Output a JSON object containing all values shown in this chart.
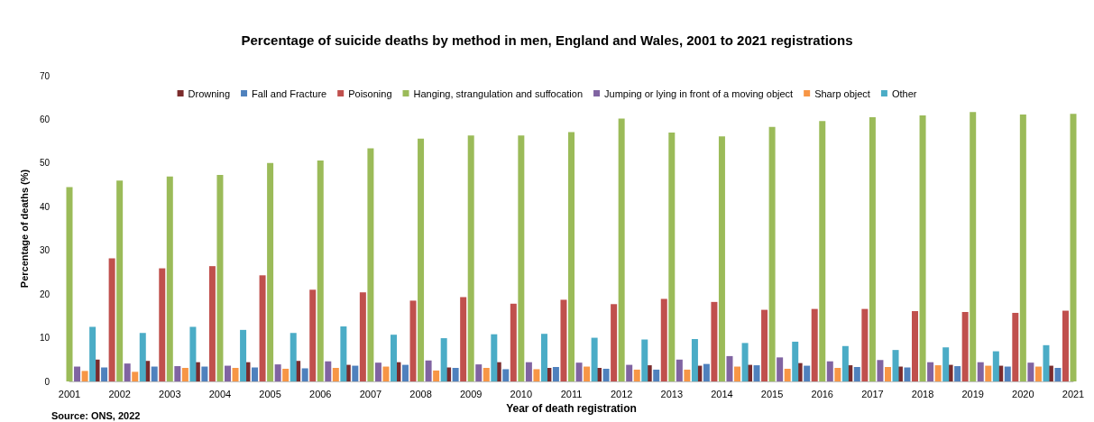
{
  "chart_data": {
    "type": "bar",
    "title": "Percentage of suicide deaths by method in men, England and Wales, 2001 to 2021 registrations",
    "xlabel": "Year of death registration",
    "ylabel": "Percentage of deaths (%)",
    "annotations": [
      "Source: ONS, 2022"
    ],
    "categories": [
      "2001",
      "2002",
      "2003",
      "2004",
      "2005",
      "2006",
      "2007",
      "2008",
      "2009",
      "2010",
      "2011",
      "2012",
      "2013",
      "2014",
      "2015",
      "2016",
      "2017",
      "2018",
      "2019",
      "2020",
      "2021"
    ],
    "series": [
      {
        "name": "Drowning",
        "color": "#7b2c2c",
        "values": [
          null,
          5.0,
          4.7,
          4.4,
          4.4,
          4.7,
          3.8,
          4.4,
          3.2,
          4.4,
          3.1,
          3.1,
          3.7,
          3.6,
          3.8,
          4.2,
          3.7,
          3.4,
          3.8,
          3.6,
          3.6
        ]
      },
      {
        "name": "Fall and Fracture",
        "color": "#4f81bd",
        "values": [
          null,
          3.2,
          3.4,
          3.4,
          3.2,
          3.0,
          3.6,
          3.8,
          3.1,
          2.8,
          3.3,
          2.9,
          2.7,
          4.0,
          3.7,
          3.6,
          3.3,
          3.2,
          3.5,
          3.4,
          3.1
        ]
      },
      {
        "name": "Poisoning",
        "color": "#c0504d",
        "values": [
          null,
          28.2,
          25.9,
          26.4,
          24.3,
          21.0,
          20.4,
          18.5,
          19.3,
          17.8,
          18.7,
          17.7,
          18.9,
          18.2,
          16.4,
          16.6,
          16.6,
          16.1,
          15.9,
          15.7,
          16.2
        ]
      },
      {
        "name": "Hanging, strangulation and suffocation",
        "color": "#9bbb59",
        "values": [
          44.5,
          46.0,
          46.9,
          47.3,
          50.0,
          50.6,
          53.4,
          55.6,
          56.3,
          56.3,
          57.1,
          60.2,
          57.0,
          56.1,
          58.3,
          59.6,
          60.5,
          60.9,
          61.7,
          61.1,
          61.3
        ]
      },
      {
        "name": "Jumping or lying in front of a moving object",
        "color": "#8064a2",
        "values": [
          3.4,
          4.1,
          3.5,
          3.6,
          3.9,
          4.6,
          4.3,
          4.8,
          3.9,
          4.4,
          4.3,
          3.8,
          5.0,
          5.8,
          5.5,
          4.6,
          4.9,
          4.4,
          4.4,
          4.3,
          null
        ]
      },
      {
        "name": "Sharp object",
        "color": "#f79646",
        "values": [
          2.4,
          2.2,
          3.1,
          3.1,
          2.9,
          3.1,
          3.4,
          2.5,
          3.1,
          2.8,
          3.4,
          2.7,
          2.7,
          3.4,
          2.9,
          3.1,
          3.3,
          3.7,
          3.6,
          3.4,
          null
        ]
      },
      {
        "name": "Other",
        "color": "#4bacc6",
        "values": [
          12.5,
          11.1,
          12.5,
          11.8,
          11.1,
          12.6,
          10.7,
          9.9,
          10.8,
          10.9,
          10.0,
          9.6,
          9.7,
          8.8,
          9.1,
          8.1,
          7.2,
          7.8,
          6.9,
          8.3,
          null
        ]
      }
    ],
    "ylim": [
      0,
      70
    ],
    "yticks": [
      0,
      10,
      20,
      30,
      40,
      50,
      60,
      70
    ],
    "grid": false,
    "legend": "top"
  }
}
